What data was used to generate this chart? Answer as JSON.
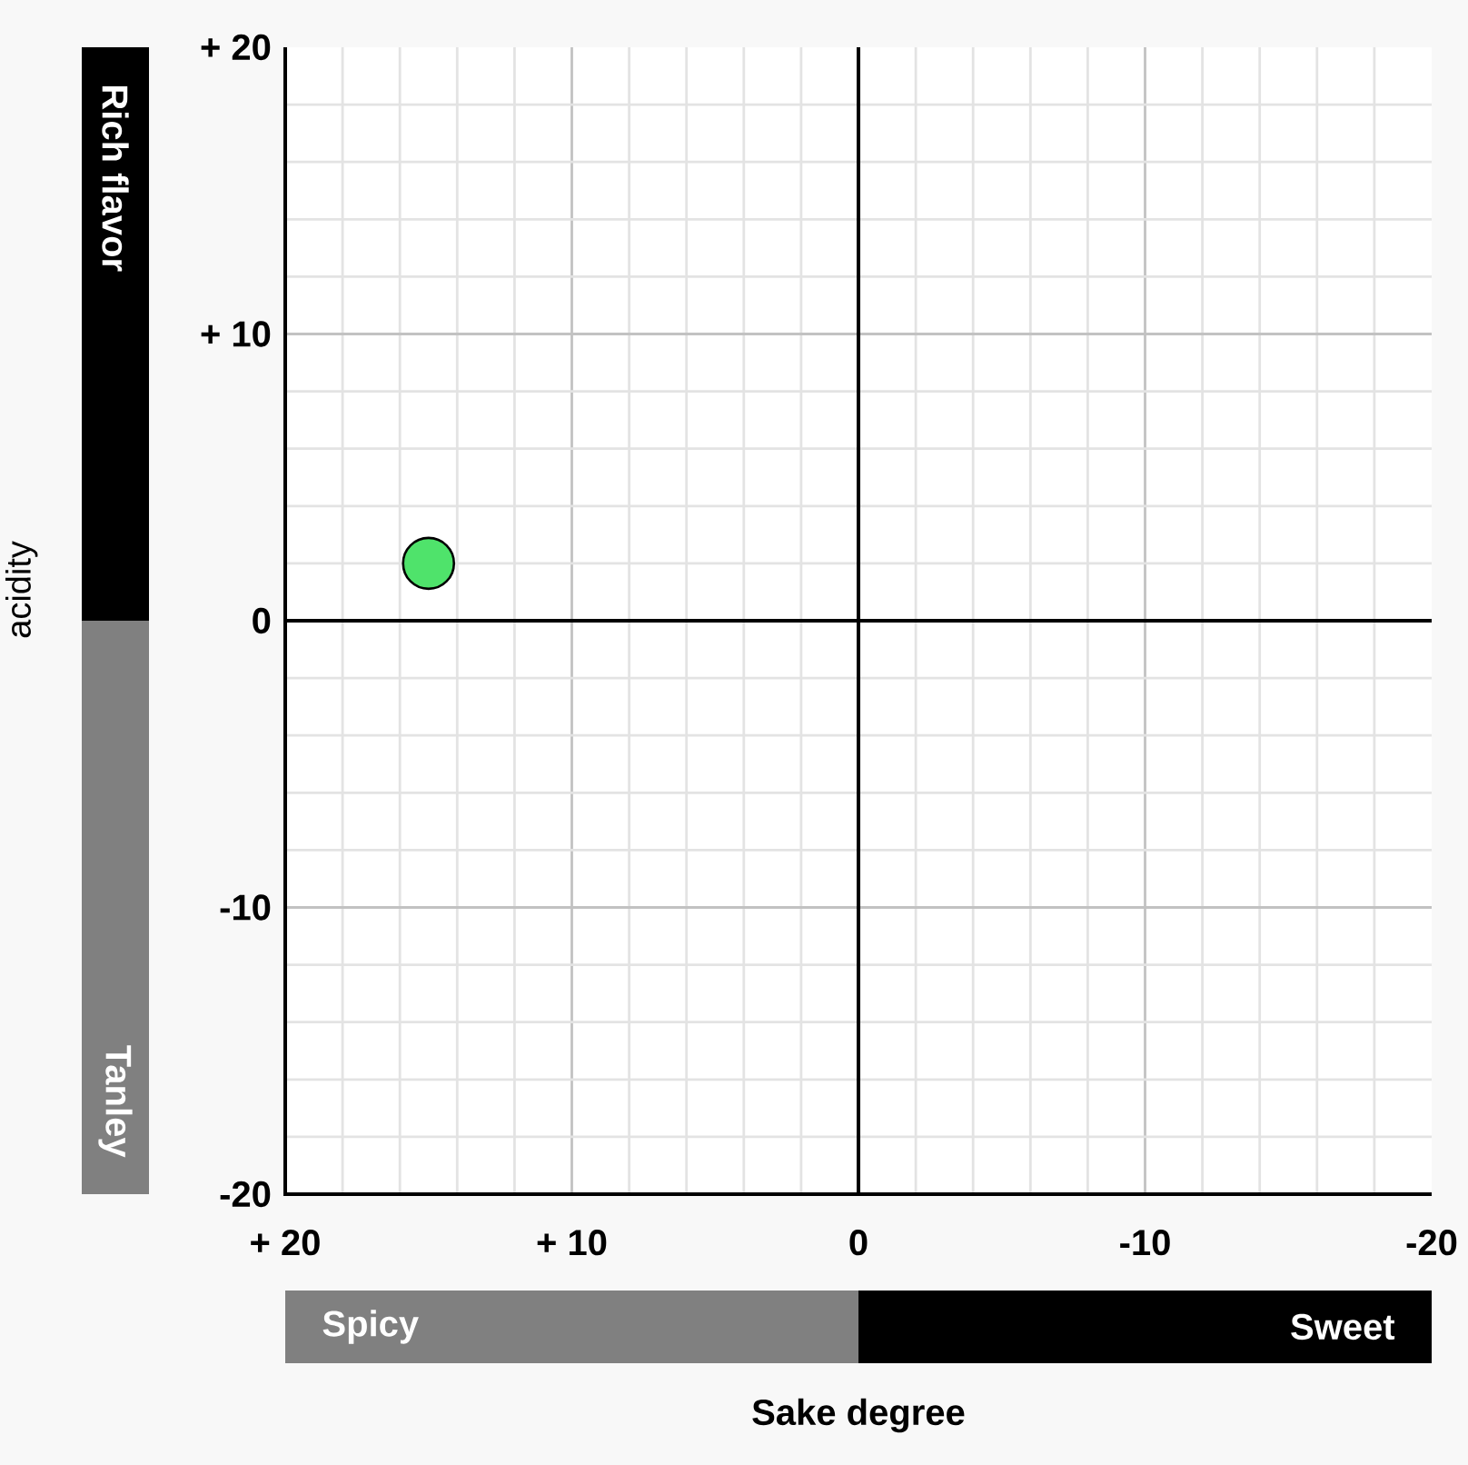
{
  "chart_data": {
    "type": "scatter",
    "xlabel": "Sake degree",
    "ylabel": "acidity",
    "x": [
      15
    ],
    "values": [
      2
    ],
    "color": "#4fe36b",
    "marker": "circle",
    "xlim": [
      20,
      -20
    ],
    "ylim": [
      -20,
      20
    ],
    "xticks": [
      {
        "value": 20,
        "label": "+ 20"
      },
      {
        "value": 10,
        "label": "+ 10"
      },
      0,
      -10,
      -20
    ],
    "yticks": [
      {
        "value": 20,
        "label": "+ 20"
      },
      {
        "value": 10,
        "label": "+ 10"
      },
      0,
      -10,
      -20
    ],
    "grid": true,
    "annotations": [
      "Rich flavor",
      "Tanley",
      "Spicy",
      "Sweet"
    ]
  }
}
